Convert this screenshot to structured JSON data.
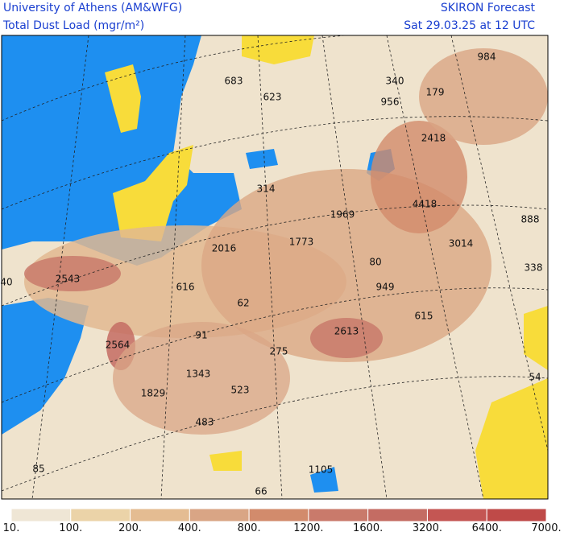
{
  "header": {
    "left_title": "University of Athens (AM&WFG)",
    "left_subtitle": "Total Dust Load (mgr/m²)",
    "right_title": "SKIRON Forecast",
    "right_subtitle": "Sat 29.03.25 at 12 UTC"
  },
  "map_labels": [
    683,
    623,
    340,
    956,
    179,
    984,
    2418,
    314,
    1969,
    4418,
    888,
    2016,
    1773,
    80,
    3014,
    338,
    40,
    2543,
    616,
    62,
    949,
    615,
    91,
    2613,
    2564,
    275,
    1343,
    523,
    54,
    1829,
    483,
    85,
    1105,
    66
  ],
  "colorbar": {
    "labels": [
      "10.",
      "100.",
      "200.",
      "400.",
      "800.",
      "1200.",
      "1600.",
      "3200.",
      "6400.",
      "7000."
    ],
    "colors": [
      "#efe6d5",
      "#ebd3a8",
      "#e4bc92",
      "#d9a585",
      "#d28b6c",
      "#c97a6b",
      "#c46c63",
      "#c45653",
      "#bf4a48"
    ]
  }
}
